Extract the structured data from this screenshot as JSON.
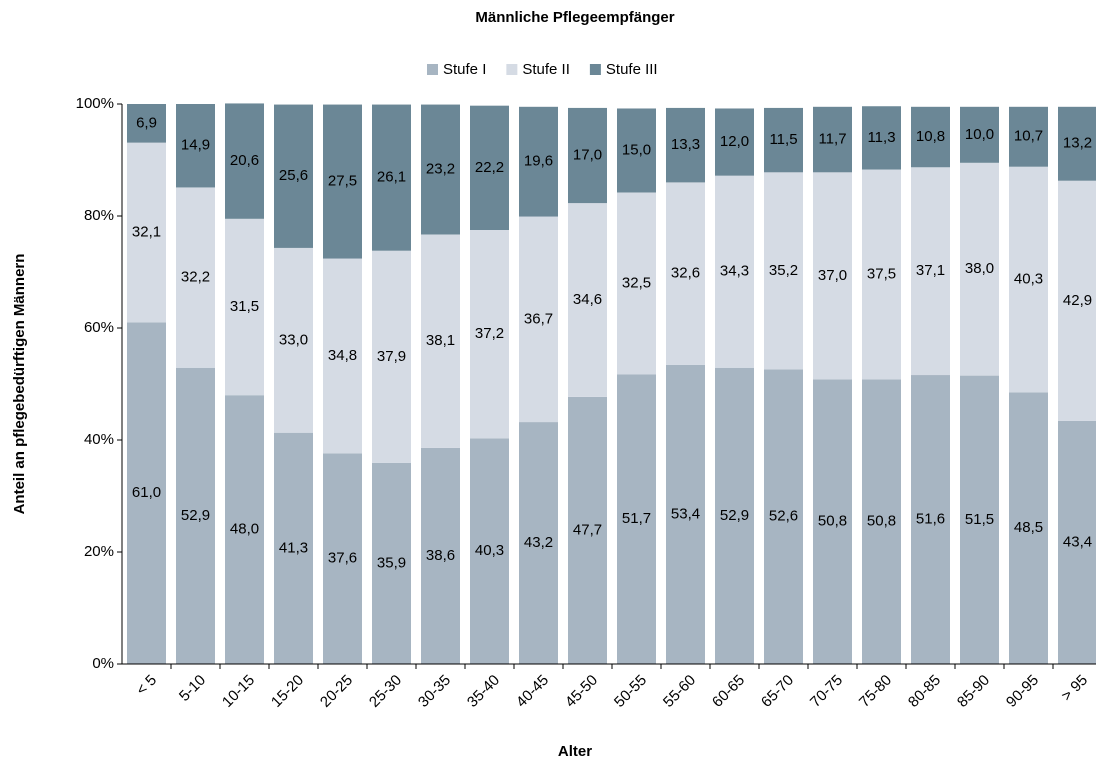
{
  "chart_data": {
    "type": "stacked_bar",
    "title": "Männliche Pflegeempfänger",
    "x_label": "Alter",
    "y_label": "Anteil an pflegebedürftigen Männern",
    "categories": [
      "< 5",
      "5-10",
      "10-15",
      "15-20",
      "20-25",
      "25-30",
      "30-35",
      "35-40",
      "40-45",
      "45-50",
      "50-55",
      "55-60",
      "60-65",
      "65-70",
      "70-75",
      "75-80",
      "80-85",
      "85-90",
      "90-95",
      "> 95"
    ],
    "series": [
      {
        "name": "Stufe I",
        "color": "#a7b5c2",
        "label_color": "#000000",
        "values": [
          61.0,
          52.9,
          48.0,
          41.3,
          37.6,
          35.9,
          38.6,
          40.3,
          43.2,
          47.7,
          51.7,
          53.4,
          52.9,
          52.6,
          50.8,
          50.8,
          51.6,
          51.5,
          48.5,
          43.4
        ],
        "value_labels": [
          "61,0",
          "52,9",
          "48,0",
          "41,3",
          "37,6",
          "35,9",
          "38,6",
          "40,3",
          "43,2",
          "47,7",
          "51,7",
          "53,4",
          "52,9",
          "52,6",
          "50,8",
          "50,8",
          "51,6",
          "51,5",
          "48,5",
          "43,4"
        ]
      },
      {
        "name": "Stufe II",
        "color": "#d5dbe4",
        "label_color": "#000000",
        "values": [
          32.1,
          32.2,
          31.5,
          33.0,
          34.8,
          37.9,
          38.1,
          37.2,
          36.7,
          34.6,
          32.5,
          32.6,
          34.3,
          35.2,
          37.0,
          37.5,
          37.1,
          38.0,
          40.3,
          42.9
        ],
        "value_labels": [
          "32,1",
          "32,2",
          "31,5",
          "33,0",
          "34,8",
          "37,9",
          "38,1",
          "37,2",
          "36,7",
          "34,6",
          "32,5",
          "32,6",
          "34,3",
          "35,2",
          "37,0",
          "37,5",
          "37,1",
          "38,0",
          "40,3",
          "42,9"
        ]
      },
      {
        "name": "Stufe III",
        "color": "#6b8796",
        "label_color": "#ffffff",
        "values": [
          6.9,
          14.9,
          20.6,
          25.6,
          27.5,
          26.1,
          23.2,
          22.2,
          19.6,
          17.0,
          15.0,
          13.3,
          12.0,
          11.5,
          11.7,
          11.3,
          10.8,
          10.0,
          10.7,
          13.2
        ],
        "value_labels": [
          "6,9",
          "14,9",
          "20,6",
          "25,6",
          "27,5",
          "26,1",
          "23,2",
          "22,2",
          "19,6",
          "17,0",
          "15,0",
          "13,3",
          "12,0",
          "11,5",
          "11,7",
          "11,3",
          "10,8",
          "10,0",
          "10,7",
          "13,2"
        ]
      }
    ],
    "ylim": [
      0,
      100
    ],
    "yticks": [
      {
        "value": 0,
        "label": "0%"
      },
      {
        "value": 20,
        "label": "20%"
      },
      {
        "value": 40,
        "label": "40%"
      },
      {
        "value": 60,
        "label": "60%"
      },
      {
        "value": 80,
        "label": "80%"
      },
      {
        "value": 100,
        "label": "100%"
      }
    ],
    "grid": false,
    "legend": "top"
  }
}
